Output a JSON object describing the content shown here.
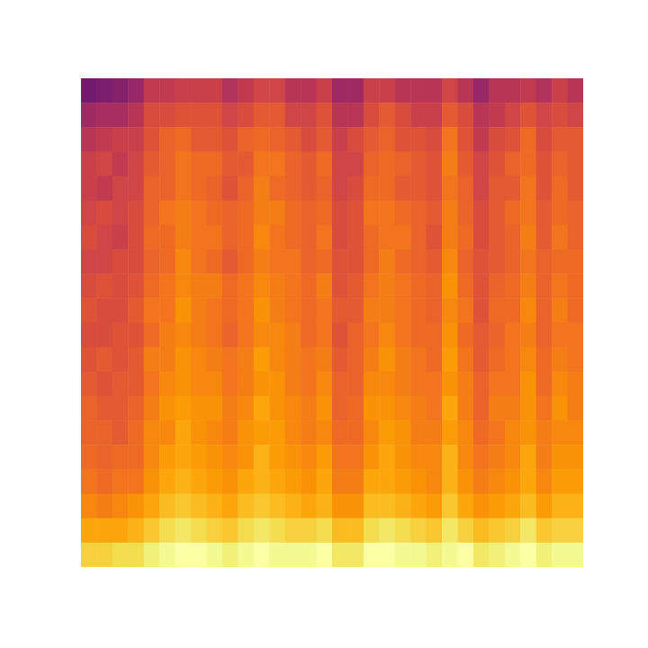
{
  "chart_data": {
    "type": "heatmap",
    "tick_labels": false,
    "values": [
      [
        44,
        45,
        46,
        48,
        53,
        53,
        54,
        54,
        54,
        51,
        53,
        55,
        55,
        52,
        52,
        54,
        49,
        49,
        54,
        54,
        52,
        52,
        52,
        55,
        52,
        48,
        52,
        52,
        53,
        51,
        54,
        52
      ],
      [
        49,
        50,
        50,
        52,
        56,
        56,
        57,
        57,
        57,
        55,
        56,
        58,
        58,
        55,
        55,
        57,
        52,
        52,
        56,
        58,
        56,
        54,
        54,
        58,
        56,
        52,
        53,
        55,
        57,
        55,
        56,
        55
      ],
      [
        52,
        53,
        54,
        54,
        57,
        59,
        60,
        58,
        58,
        57,
        59,
        60,
        59,
        58,
        56,
        58,
        54,
        56,
        58,
        59,
        57,
        57,
        56,
        61,
        57,
        53,
        56,
        57,
        60,
        56,
        58,
        58
      ],
      [
        54,
        55,
        53,
        55,
        58,
        59,
        61,
        60,
        60,
        58,
        58,
        61,
        61,
        59,
        58,
        60,
        55,
        55,
        59,
        60,
        59,
        58,
        57,
        62,
        58,
        55,
        57,
        59,
        60,
        57,
        59,
        58
      ],
      [
        54,
        53,
        55,
        55,
        59,
        59,
        61,
        60,
        59,
        57,
        59,
        62,
        60,
        59,
        58,
        59,
        55,
        56,
        60,
        60,
        58,
        58,
        57,
        61,
        59,
        55,
        58,
        58,
        61,
        57,
        60,
        58
      ],
      [
        55,
        56,
        55,
        56,
        59,
        61,
        62,
        61,
        60,
        59,
        60,
        62,
        62,
        60,
        59,
        60,
        56,
        57,
        61,
        61,
        60,
        59,
        58,
        62,
        59,
        56,
        58,
        60,
        61,
        58,
        60,
        59
      ],
      [
        56,
        55,
        54,
        56,
        60,
        60,
        62,
        61,
        61,
        59,
        60,
        63,
        61,
        60,
        59,
        61,
        56,
        57,
        60,
        61,
        61,
        59,
        57,
        62,
        60,
        56,
        58,
        59,
        62,
        58,
        61,
        59
      ],
      [
        55,
        55,
        56,
        56,
        59,
        60,
        63,
        61,
        60,
        58,
        60,
        62,
        61,
        61,
        59,
        60,
        57,
        57,
        60,
        62,
        60,
        59,
        58,
        63,
        59,
        57,
        58,
        59,
        61,
        59,
        60,
        60
      ],
      [
        56,
        57,
        56,
        57,
        60,
        61,
        63,
        62,
        62,
        60,
        61,
        63,
        62,
        61,
        60,
        62,
        57,
        58,
        61,
        62,
        61,
        60,
        59,
        64,
        60,
        57,
        59,
        60,
        62,
        59,
        61,
        60
      ],
      [
        57,
        56,
        56,
        58,
        61,
        61,
        64,
        62,
        61,
        60,
        61,
        64,
        62,
        61,
        60,
        61,
        58,
        58,
        62,
        62,
        61,
        60,
        59,
        63,
        61,
        57,
        60,
        60,
        63,
        59,
        62,
        60
      ],
      [
        56,
        56,
        57,
        57,
        60,
        62,
        63,
        62,
        61,
        59,
        61,
        63,
        63,
        62,
        60,
        61,
        57,
        59,
        61,
        63,
        61,
        60,
        60,
        64,
        60,
        58,
        59,
        61,
        62,
        59,
        61,
        61
      ],
      [
        57,
        58,
        57,
        58,
        62,
        62,
        64,
        63,
        62,
        61,
        62,
        65,
        63,
        62,
        61,
        62,
        58,
        59,
        62,
        64,
        62,
        61,
        60,
        65,
        61,
        58,
        60,
        61,
        63,
        60,
        62,
        61
      ],
      [
        58,
        57,
        58,
        58,
        61,
        63,
        64,
        63,
        63,
        61,
        62,
        64,
        64,
        62,
        61,
        63,
        59,
        59,
        63,
        63,
        62,
        61,
        61,
        64,
        62,
        59,
        61,
        61,
        64,
        60,
        63,
        62
      ],
      [
        59,
        58,
        58,
        59,
        62,
        64,
        65,
        64,
        64,
        62,
        63,
        66,
        64,
        63,
        62,
        64,
        59,
        60,
        64,
        64,
        63,
        62,
        61,
        66,
        62,
        59,
        62,
        62,
        64,
        61,
        64,
        62
      ],
      [
        59,
        59,
        58,
        60,
        63,
        63,
        66,
        64,
        63,
        62,
        64,
        65,
        65,
        63,
        62,
        63,
        60,
        60,
        63,
        65,
        64,
        62,
        62,
        65,
        63,
        60,
        61,
        63,
        64,
        62,
        63,
        63
      ],
      [
        60,
        59,
        60,
        60,
        63,
        65,
        66,
        65,
        64,
        63,
        64,
        67,
        65,
        64,
        63,
        65,
        61,
        61,
        64,
        66,
        64,
        63,
        63,
        67,
        63,
        61,
        62,
        63,
        66,
        62,
        64,
        64
      ],
      [
        61,
        60,
        61,
        61,
        64,
        66,
        67,
        66,
        65,
        64,
        66,
        67,
        66,
        65,
        64,
        66,
        62,
        62,
        66,
        66,
        65,
        64,
        63,
        67,
        64,
        62,
        63,
        64,
        66,
        63,
        65,
        65
      ],
      [
        63,
        62,
        63,
        64,
        66,
        68,
        69,
        68,
        67,
        66,
        68,
        69,
        68,
        67,
        66,
        67,
        64,
        64,
        68,
        68,
        67,
        66,
        65,
        69,
        66,
        64,
        65,
        66,
        68,
        65,
        67,
        67
      ],
      [
        66,
        66,
        66,
        67,
        69,
        71,
        72,
        71,
        70,
        69,
        71,
        72,
        71,
        70,
        70,
        71,
        68,
        68,
        71,
        72,
        71,
        70,
        69,
        72,
        70,
        68,
        69,
        70,
        72,
        69,
        70,
        70
      ],
      [
        70,
        70,
        71,
        71,
        73,
        74,
        75,
        75,
        74,
        73,
        74,
        75,
        74,
        74,
        74,
        75,
        72,
        72,
        75,
        75,
        74,
        74,
        73,
        74,
        75,
        72,
        73,
        74,
        75,
        73,
        74,
        74
      ]
    ]
  }
}
